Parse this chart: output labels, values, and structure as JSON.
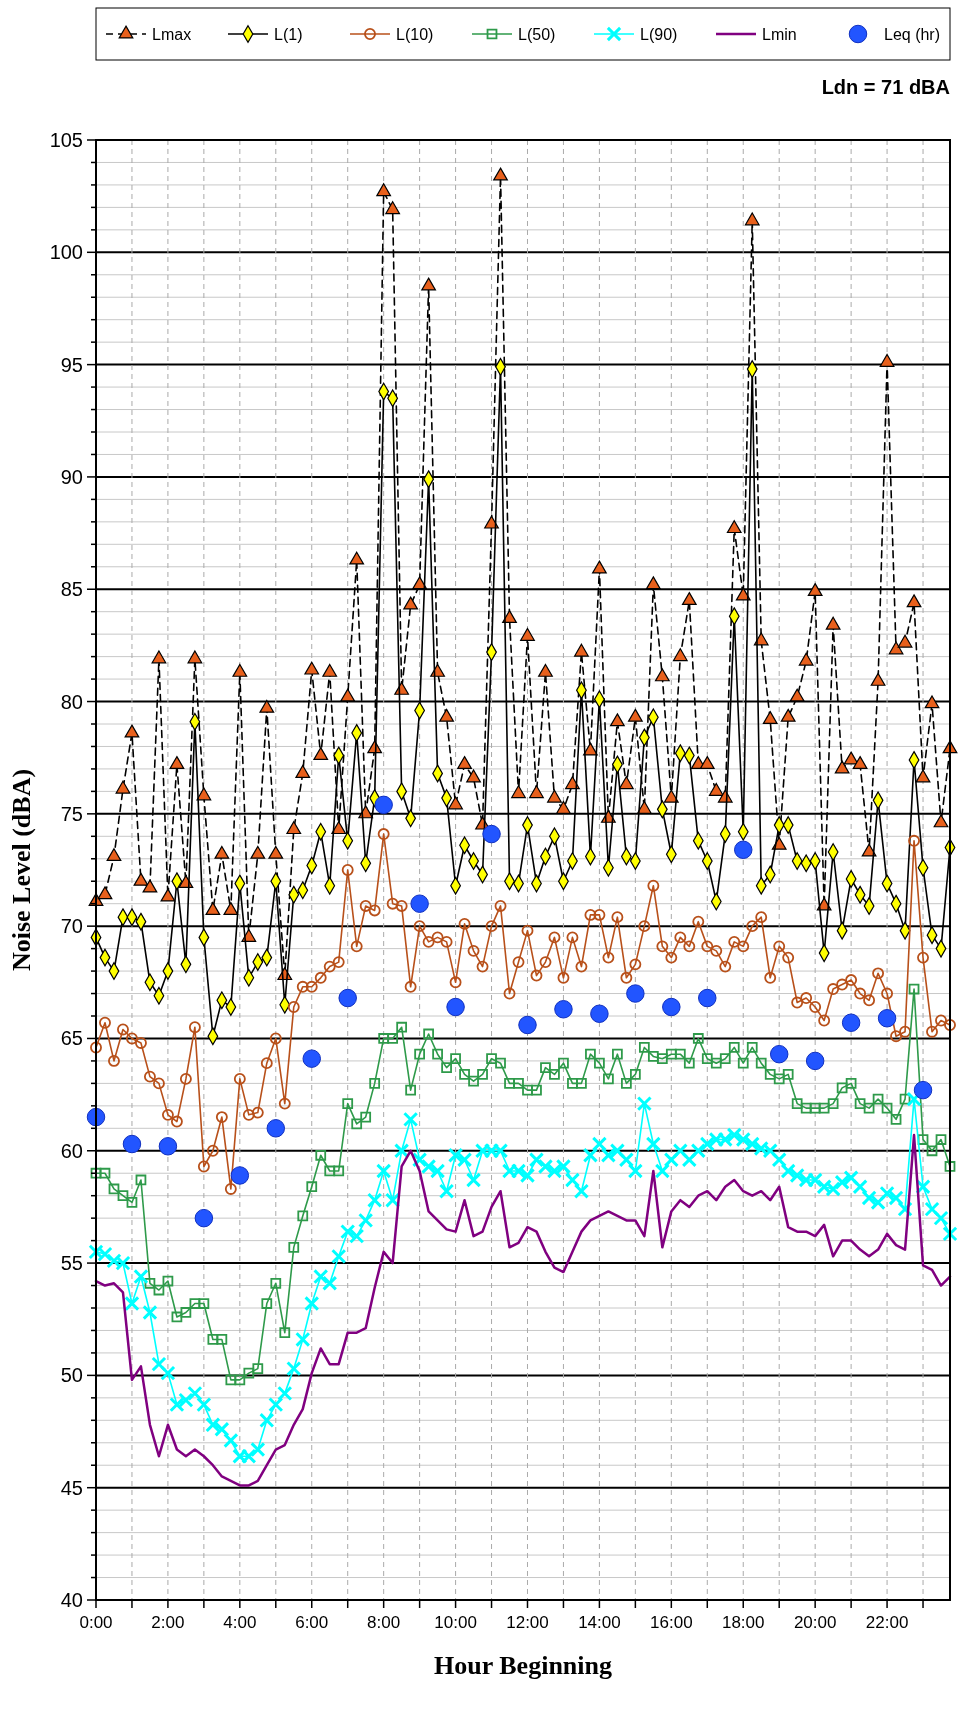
{
  "chart_data": {
    "type": "line",
    "xlabel": "Hour Beginning",
    "ylabel": "Noise Level (dBA)",
    "x": [
      0,
      0.25,
      0.5,
      0.75,
      1,
      1.25,
      1.5,
      1.75,
      2,
      2.25,
      2.5,
      2.75,
      3,
      3.25,
      3.5,
      3.75,
      4,
      4.25,
      4.5,
      4.75,
      5,
      5.25,
      5.5,
      5.75,
      6,
      6.25,
      6.5,
      6.75,
      7,
      7.25,
      7.5,
      7.75,
      8,
      8.25,
      8.5,
      8.75,
      9,
      9.25,
      9.5,
      9.75,
      10,
      10.25,
      10.5,
      10.75,
      11,
      11.25,
      11.5,
      11.75,
      12,
      12.25,
      12.5,
      12.75,
      13,
      13.25,
      13.5,
      13.75,
      14,
      14.25,
      14.5,
      14.75,
      15,
      15.25,
      15.5,
      15.75,
      16,
      16.25,
      16.5,
      16.75,
      17,
      17.25,
      17.5,
      17.75,
      18,
      18.25,
      18.5,
      18.75,
      19,
      19.25,
      19.5,
      19.75,
      20,
      20.25,
      20.5,
      20.75,
      21,
      21.25,
      21.5,
      21.75,
      22,
      22.25,
      22.5,
      22.75,
      23,
      23.25,
      23.5,
      23.75
    ],
    "series": [
      {
        "name": "Lmax",
        "color": "#e8601c",
        "marker": "triangle",
        "line_style": "dashed",
        "values": [
          71.1,
          71.4,
          73.1,
          76.1,
          78.6,
          72,
          71.7,
          81.9,
          71.3,
          77.2,
          71.9,
          81.9,
          75.8,
          70.7,
          73.2,
          70.7,
          81.3,
          69.5,
          73.2,
          79.7,
          73.2,
          67.8,
          74.3,
          76.8,
          81.4,
          77.6,
          81.3,
          74.3,
          80.2,
          86.3,
          75,
          77.9,
          102.7,
          101.9,
          80.5,
          84.3,
          85.2,
          98.5,
          81.3,
          79.3,
          75.4,
          77.2,
          76.6,
          74.5,
          87.9,
          103.4,
          83.7,
          75.9,
          82.9,
          75.9,
          81.3,
          75.7,
          75.2,
          76.3,
          82.2,
          77.8,
          85.9,
          74.8,
          79.1,
          76.3,
          79.3,
          75.2,
          85.2,
          81.1,
          75.7,
          82,
          84.5,
          77.2,
          77.2,
          76,
          75.7,
          87.7,
          84.7,
          101.4,
          82.7,
          79.2,
          73.6,
          79.3,
          80.2,
          81.8,
          84.9,
          70.9,
          83.4,
          77,
          77.4,
          77.2,
          73.3,
          80.9,
          95.1,
          82.3,
          82.6,
          84.4,
          76.6,
          79.9,
          74.6,
          77.9
        ]
      },
      {
        "name": "L(1)",
        "color": "#ffff00",
        "marker": "diamond",
        "line_style": "solid",
        "values": [
          69.5,
          68.6,
          68,
          70.4,
          70.4,
          70.2,
          67.5,
          66.9,
          68,
          72,
          68.3,
          79.1,
          69.5,
          65.1,
          66.7,
          66.4,
          71.9,
          67.7,
          68.4,
          68.6,
          72,
          66.5,
          71.4,
          71.6,
          72.7,
          74.2,
          71.8,
          77.6,
          73.8,
          78.6,
          72.8,
          75.7,
          93.8,
          93.5,
          76,
          74.8,
          79.6,
          89.9,
          76.8,
          75.7,
          71.8,
          73.6,
          72.9,
          72.3,
          82.2,
          94.9,
          72,
          71.9,
          74.5,
          71.9,
          73.1,
          74,
          72,
          72.9,
          80.5,
          73.1,
          80.1,
          72.6,
          77.2,
          73.1,
          72.9,
          78.4,
          79.3,
          75.2,
          73.2,
          77.7,
          77.6,
          73.8,
          72.9,
          71.1,
          74.1,
          83.8,
          74.2,
          94.8,
          71.8,
          72.3,
          74.5,
          74.5,
          72.9,
          72.8,
          72.9,
          68.8,
          73.3,
          69.8,
          72.1,
          71.4,
          70.9,
          75.6,
          71.9,
          71,
          69.8,
          77.4,
          72.6,
          69.6,
          69,
          73.5
        ]
      },
      {
        "name": "L(10)",
        "color": "#b8501a",
        "marker": "circle",
        "line_style": "solid",
        "values": [
          64.6,
          65.7,
          64,
          65.4,
          65,
          64.8,
          63.3,
          63,
          61.6,
          61.3,
          63.2,
          65.5,
          59.3,
          60,
          61.5,
          58.3,
          63.2,
          61.6,
          61.7,
          63.9,
          65,
          62.1,
          66.4,
          67.3,
          67.3,
          67.7,
          68.2,
          68.4,
          72.5,
          69.1,
          70.9,
          70.7,
          74.1,
          71,
          70.9,
          67.3,
          70,
          69.3,
          69.5,
          69.3,
          67.5,
          70.1,
          68.9,
          68.2,
          70,
          70.9,
          67,
          68.4,
          69.8,
          67.8,
          68.4,
          69.5,
          67.7,
          69.5,
          68.2,
          70.5,
          70.5,
          68.6,
          70.4,
          67.7,
          68.3,
          70,
          71.8,
          69.1,
          68.6,
          69.5,
          69.1,
          70.2,
          69.1,
          68.9,
          68.2,
          69.3,
          69.1,
          70,
          70.4,
          67.7,
          69.1,
          68.6,
          66.6,
          66.8,
          66.4,
          65.8,
          67.2,
          67.4,
          67.6,
          67,
          66.7,
          67.9,
          67,
          65.1,
          65.3,
          73.8,
          68.6,
          65.3,
          65.8,
          65.6
        ]
      },
      {
        "name": "L(50)",
        "color": "#2e9a4a",
        "marker": "square",
        "line_style": "solid",
        "values": [
          59,
          59,
          58.3,
          58,
          57.7,
          58.7,
          54.1,
          53.8,
          54.2,
          52.6,
          52.8,
          53.2,
          53.2,
          51.6,
          51.6,
          49.8,
          49.8,
          50.1,
          50.3,
          53.2,
          54.1,
          51.9,
          55.7,
          57.1,
          58.4,
          59.8,
          59.1,
          59.1,
          62.1,
          61.2,
          61.5,
          63,
          65,
          65,
          65.5,
          62.7,
          64.3,
          65.2,
          64.3,
          63.7,
          64.1,
          63.4,
          63.1,
          63.4,
          64.1,
          63.9,
          63,
          63,
          62.7,
          62.7,
          63.7,
          63.4,
          63.9,
          63,
          63,
          64.3,
          63.9,
          63.2,
          64.3,
          63,
          63.4,
          64.6,
          64.2,
          64.1,
          64.3,
          64.3,
          63.9,
          65,
          64.1,
          63.9,
          64.1,
          64.6,
          63.9,
          64.6,
          63.9,
          63.4,
          63.2,
          63.4,
          62.1,
          61.9,
          61.9,
          61.9,
          62.1,
          62.8,
          63,
          62.1,
          61.9,
          62.3,
          61.9,
          61.4,
          62.3,
          67.2,
          60.5,
          60,
          60.5,
          59.3
        ]
      },
      {
        "name": "L(90)",
        "color": "#00ffff",
        "marker": "cross",
        "line_style": "solid",
        "values": [
          55.5,
          55.4,
          55.1,
          55,
          53.2,
          54.4,
          52.8,
          50.5,
          50.1,
          48.7,
          48.9,
          49.2,
          48.7,
          47.8,
          47.6,
          47.1,
          46.4,
          46.4,
          46.7,
          48,
          48.7,
          49.2,
          50.3,
          51.6,
          53.2,
          54.4,
          54.1,
          55.3,
          56.4,
          56.2,
          56.9,
          57.8,
          59.1,
          57.8,
          60,
          61.4,
          59.6,
          59.3,
          59.1,
          58.2,
          59.8,
          59.6,
          58.7,
          60,
          60,
          60,
          59.1,
          59.1,
          58.9,
          59.6,
          59.3,
          59.1,
          59.3,
          58.7,
          58.2,
          59.8,
          60.3,
          59.8,
          60,
          59.6,
          59.1,
          62.1,
          60.3,
          59.1,
          59.6,
          60,
          59.6,
          60,
          60.3,
          60.5,
          60.5,
          60.7,
          60.5,
          60.3,
          60.1,
          60,
          59.6,
          59.1,
          58.9,
          58.7,
          58.7,
          58.4,
          58.3,
          58.6,
          58.8,
          58.4,
          57.9,
          57.7,
          58.1,
          57.9,
          57.4,
          62.3,
          58.4,
          57.4,
          57,
          56.3
        ]
      },
      {
        "name": "Lmin",
        "color": "#800080",
        "line_style": "solid",
        "values": [
          54.2,
          54,
          54.1,
          53.7,
          49.8,
          50.4,
          47.8,
          46.4,
          47.8,
          46.7,
          46.4,
          46.7,
          46.4,
          46,
          45.5,
          45.3,
          45.1,
          45.1,
          45.3,
          46,
          46.7,
          46.9,
          47.8,
          48.5,
          50.1,
          51.2,
          50.5,
          50.5,
          51.9,
          51.9,
          52.1,
          53.9,
          55.5,
          55,
          59.3,
          60,
          59.1,
          57.3,
          56.9,
          56.5,
          56.4,
          57.8,
          56.2,
          56.4,
          57.5,
          58.2,
          55.7,
          55.9,
          56.6,
          56.4,
          55.5,
          54.8,
          54.6,
          55.5,
          56.4,
          56.9,
          57.1,
          57.3,
          57.1,
          56.9,
          56.9,
          56.2,
          59.1,
          55.7,
          57.3,
          57.8,
          57.5,
          58,
          58.2,
          57.8,
          58.4,
          58.7,
          58.2,
          58,
          58.2,
          57.8,
          58.4,
          56.6,
          56.4,
          56.4,
          56.2,
          56.7,
          55.3,
          56,
          56,
          55.6,
          55.3,
          55.6,
          56.3,
          55.8,
          55.6,
          60.7,
          54.9,
          54.7,
          54,
          54.4
        ]
      },
      {
        "name": "Leq (hr)",
        "type": "scatter",
        "color": "#2255ff",
        "marker": "circle",
        "x": [
          0,
          1,
          2,
          3,
          4,
          5,
          6,
          7,
          8,
          9,
          10,
          11,
          12,
          13,
          14,
          15,
          16,
          17,
          18,
          19,
          20,
          21,
          22,
          23
        ],
        "values": [
          61.5,
          60.3,
          60.2,
          57,
          58.9,
          61,
          64.1,
          66.8,
          75.4,
          71,
          66.4,
          74.1,
          65.6,
          66.3,
          66.1,
          67,
          66.4,
          66.8,
          73.4,
          64.3,
          64,
          65.7,
          65.9,
          62.7
        ]
      }
    ],
    "xlim": [
      0,
      23.75
    ],
    "xticks": [
      {
        "value": 0,
        "label": "0:00"
      },
      {
        "value": 1,
        "label": null
      },
      {
        "value": 2,
        "label": "2:00"
      },
      {
        "value": 3,
        "label": null
      },
      {
        "value": 4,
        "label": "4:00"
      },
      {
        "value": 5,
        "label": null
      },
      {
        "value": 6,
        "label": "6:00"
      },
      {
        "value": 7,
        "label": null
      },
      {
        "value": 8,
        "label": "8:00"
      },
      {
        "value": 9,
        "label": null
      },
      {
        "value": 10,
        "label": "10:00"
      },
      {
        "value": 11,
        "label": null
      },
      {
        "value": 12,
        "label": "12:00"
      },
      {
        "value": 13,
        "label": null
      },
      {
        "value": 14,
        "label": "14:00"
      },
      {
        "value": 15,
        "label": null
      },
      {
        "value": 16,
        "label": "16:00"
      },
      {
        "value": 17,
        "label": null
      },
      {
        "value": 18,
        "label": "18:00"
      },
      {
        "value": 19,
        "label": null
      },
      {
        "value": 20,
        "label": "20:00"
      },
      {
        "value": 21,
        "label": null
      },
      {
        "value": 22,
        "label": "22:00"
      },
      {
        "value": 23,
        "label": null
      }
    ],
    "ylim": [
      40,
      105
    ],
    "yticks": [
      40,
      {
        "value": 41,
        "label": null
      },
      {
        "value": 42,
        "label": null
      },
      {
        "value": 43,
        "label": null
      },
      {
        "value": 44,
        "label": null
      },
      45,
      {
        "value": 46,
        "label": null
      },
      {
        "value": 47,
        "label": null
      },
      {
        "value": 48,
        "label": null
      },
      {
        "value": 49,
        "label": null
      },
      50,
      {
        "value": 51,
        "label": null
      },
      {
        "value": 52,
        "label": null
      },
      {
        "value": 53,
        "label": null
      },
      {
        "value": 54,
        "label": null
      },
      55,
      {
        "value": 56,
        "label": null
      },
      {
        "value": 57,
        "label": null
      },
      {
        "value": 58,
        "label": null
      },
      {
        "value": 59,
        "label": null
      },
      60,
      {
        "value": 61,
        "label": null
      },
      {
        "value": 62,
        "label": null
      },
      {
        "value": 63,
        "label": null
      },
      {
        "value": 64,
        "label": null
      },
      65,
      {
        "value": 66,
        "label": null
      },
      {
        "value": 67,
        "label": null
      },
      {
        "value": 68,
        "label": null
      },
      {
        "value": 69,
        "label": null
      },
      70,
      {
        "value": 71,
        "label": null
      },
      {
        "value": 72,
        "label": null
      },
      {
        "value": 73,
        "label": null
      },
      {
        "value": 74,
        "label": null
      },
      75,
      {
        "value": 76,
        "label": null
      },
      {
        "value": 77,
        "label": null
      },
      {
        "value": 78,
        "label": null
      },
      {
        "value": 79,
        "label": null
      },
      80,
      {
        "value": 81,
        "label": null
      },
      {
        "value": 82,
        "label": null
      },
      {
        "value": 83,
        "label": null
      },
      {
        "value": 84,
        "label": null
      },
      85,
      {
        "value": 86,
        "label": null
      },
      {
        "value": 87,
        "label": null
      },
      {
        "value": 88,
        "label": null
      },
      {
        "value": 89,
        "label": null
      },
      90,
      {
        "value": 91,
        "label": null
      },
      {
        "value": 92,
        "label": null
      },
      {
        "value": 93,
        "label": null
      },
      {
        "value": 94,
        "label": null
      },
      95,
      {
        "value": 96,
        "label": null
      },
      {
        "value": 97,
        "label": null
      },
      {
        "value": 98,
        "label": null
      },
      {
        "value": 99,
        "label": null
      },
      100,
      {
        "value": 101,
        "label": null
      },
      {
        "value": 102,
        "label": null
      },
      {
        "value": 103,
        "label": null
      },
      {
        "value": 104,
        "label": null
      },
      105
    ],
    "grid": true,
    "legend": "top",
    "annotations": [
      "Ldn = 71 dBA"
    ]
  }
}
